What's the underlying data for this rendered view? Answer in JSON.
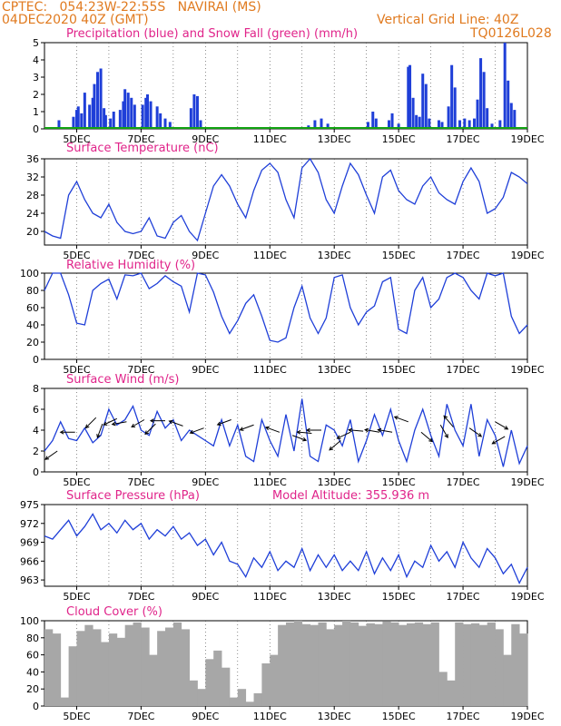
{
  "header": {
    "station_line": "CPTEC:   054:23W-22:55S   NAVIRAI (MS)",
    "date_line": "04DEC2020 40Z (GMT)",
    "grid_line": "Vertical Grid Line: 40Z",
    "code": "TQ0126L028"
  },
  "colors": {
    "header": "#e07a1f",
    "title": "#e0248a",
    "line": "#1f3fd8",
    "precip": "#1f3fd8",
    "snow": "#12a312",
    "cloud": "#a7a7a7",
    "arrow": "#000000"
  },
  "x_axis": {
    "tick_labels": [
      "5DEC",
      "7DEC",
      "9DEC",
      "11DEC",
      "13DEC",
      "15DEC",
      "17DEC",
      "19DEC"
    ]
  },
  "chart_data": [
    {
      "type": "bar",
      "title": "Precipitation (blue) and Snow Fall (green) (mm/h)",
      "ylim": [
        0,
        5
      ],
      "yticks": [
        0,
        1,
        2,
        3,
        4,
        5
      ],
      "series": [
        {
          "name": "Precipitation",
          "color": "#1f3fd8",
          "points": [
            [
              0.45,
              0.5
            ],
            [
              0.9,
              0.7
            ],
            [
              1.0,
              1.1
            ],
            [
              1.05,
              1.3
            ],
            [
              1.15,
              0.9
            ],
            [
              1.25,
              2.1
            ],
            [
              1.4,
              1.4
            ],
            [
              1.5,
              1.8
            ],
            [
              1.55,
              2.6
            ],
            [
              1.65,
              3.3
            ],
            [
              1.75,
              3.5
            ],
            [
              1.85,
              1.2
            ],
            [
              1.9,
              0.8
            ],
            [
              2.05,
              0.6
            ],
            [
              2.15,
              1.0
            ],
            [
              2.35,
              1.1
            ],
            [
              2.45,
              1.6
            ],
            [
              2.5,
              2.3
            ],
            [
              2.6,
              2.1
            ],
            [
              2.7,
              1.8
            ],
            [
              2.8,
              1.4
            ],
            [
              3.05,
              1.4
            ],
            [
              3.15,
              1.8
            ],
            [
              3.2,
              2.0
            ],
            [
              3.3,
              1.6
            ],
            [
              3.5,
              1.3
            ],
            [
              3.6,
              0.9
            ],
            [
              3.75,
              0.6
            ],
            [
              3.9,
              0.4
            ],
            [
              4.55,
              1.2
            ],
            [
              4.65,
              2.0
            ],
            [
              4.75,
              1.9
            ],
            [
              4.85,
              0.5
            ],
            [
              8.2,
              0.2
            ],
            [
              8.4,
              0.5
            ],
            [
              8.6,
              0.6
            ],
            [
              8.8,
              0.3
            ],
            [
              10.05,
              0.4
            ],
            [
              10.2,
              1.0
            ],
            [
              10.3,
              0.6
            ],
            [
              10.7,
              0.5
            ],
            [
              10.8,
              0.9
            ],
            [
              11.0,
              0.3
            ],
            [
              11.3,
              3.6
            ],
            [
              11.35,
              3.7
            ],
            [
              11.45,
              1.8
            ],
            [
              11.55,
              0.8
            ],
            [
              11.65,
              0.7
            ],
            [
              11.75,
              3.2
            ],
            [
              11.85,
              2.6
            ],
            [
              11.95,
              0.6
            ],
            [
              12.25,
              0.5
            ],
            [
              12.35,
              0.4
            ],
            [
              12.55,
              1.3
            ],
            [
              12.65,
              3.7
            ],
            [
              12.75,
              2.4
            ],
            [
              12.9,
              0.5
            ],
            [
              13.05,
              0.6
            ],
            [
              13.2,
              0.5
            ],
            [
              13.35,
              0.6
            ],
            [
              13.45,
              1.7
            ],
            [
              13.55,
              4.1
            ],
            [
              13.65,
              3.3
            ],
            [
              13.75,
              1.2
            ],
            [
              13.9,
              0.3
            ],
            [
              14.15,
              0.5
            ],
            [
              14.3,
              5.0
            ],
            [
              14.4,
              2.8
            ],
            [
              14.5,
              1.5
            ],
            [
              14.6,
              1.1
            ]
          ]
        },
        {
          "name": "Snow Fall",
          "color": "#12a312",
          "points": [
            [
              0,
              0
            ],
            [
              15.0,
              0
            ]
          ]
        }
      ]
    },
    {
      "type": "line",
      "title": "Surface Temperature (nC)",
      "ylim": [
        17,
        36
      ],
      "yticks": [
        20,
        24,
        28,
        32,
        36
      ],
      "x": [
        0,
        0.25,
        0.5,
        0.75,
        1.0,
        1.25,
        1.5,
        1.75,
        2.0,
        2.25,
        2.5,
        2.75,
        3.0,
        3.25,
        3.5,
        3.75,
        4.0,
        4.25,
        4.5,
        4.75,
        5.0,
        5.25,
        5.5,
        5.75,
        6.0,
        6.25,
        6.5,
        6.75,
        7.0,
        7.25,
        7.5,
        7.75,
        8.0,
        8.25,
        8.5,
        8.75,
        9.0,
        9.25,
        9.5,
        9.75,
        10.0,
        10.25,
        10.5,
        10.75,
        11.0,
        11.25,
        11.5,
        11.75,
        12.0,
        12.25,
        12.5,
        12.75,
        13.0,
        13.25,
        13.5,
        13.75,
        14.0,
        14.25,
        14.5,
        14.75,
        15.0
      ],
      "series": [
        {
          "color": "#1f3fd8",
          "values": [
            20,
            19,
            18.5,
            28,
            31,
            27,
            24,
            23,
            26,
            22,
            20,
            19.5,
            20,
            23,
            19,
            18.5,
            22,
            23.5,
            20,
            18,
            24,
            30,
            32.5,
            30,
            26,
            23,
            29,
            33.5,
            35,
            33,
            27,
            23,
            34,
            36,
            33,
            27,
            24,
            30,
            35,
            32.5,
            28,
            24,
            32,
            33.5,
            29,
            27,
            26,
            30,
            32,
            28.5,
            27,
            26,
            31,
            34,
            31,
            24,
            25,
            27.5,
            33,
            32,
            30.5
          ]
        }
      ]
    },
    {
      "type": "line",
      "title": "Relative Humidity (%)",
      "ylim": [
        0,
        100
      ],
      "yticks": [
        0,
        20,
        40,
        60,
        80,
        100
      ],
      "x": [
        0,
        0.25,
        0.5,
        0.75,
        1.0,
        1.25,
        1.5,
        1.75,
        2.0,
        2.25,
        2.5,
        2.75,
        3.0,
        3.25,
        3.5,
        3.75,
        4.0,
        4.25,
        4.5,
        4.75,
        5.0,
        5.25,
        5.5,
        5.75,
        6.0,
        6.25,
        6.5,
        6.75,
        7.0,
        7.25,
        7.5,
        7.75,
        8.0,
        8.25,
        8.5,
        8.75,
        9.0,
        9.25,
        9.5,
        9.75,
        10.0,
        10.25,
        10.5,
        10.75,
        11.0,
        11.25,
        11.5,
        11.75,
        12.0,
        12.25,
        12.5,
        12.75,
        13.0,
        13.25,
        13.5,
        13.75,
        14.0,
        14.25,
        14.5,
        14.75,
        15.0
      ],
      "series": [
        {
          "color": "#1f3fd8",
          "values": [
            80,
            100,
            100,
            75,
            42,
            40,
            80,
            88,
            93,
            70,
            98,
            97,
            100,
            82,
            88,
            97,
            90,
            85,
            55,
            100,
            98,
            78,
            50,
            30,
            45,
            65,
            75,
            50,
            22,
            20,
            25,
            60,
            85,
            48,
            30,
            48,
            95,
            98,
            60,
            40,
            55,
            62,
            90,
            95,
            35,
            30,
            80,
            95,
            60,
            70,
            95,
            100,
            95,
            80,
            70,
            100,
            97,
            100,
            50,
            30,
            40
          ]
        }
      ]
    },
    {
      "type": "line",
      "title": "Surface Wind (m/s)",
      "ylim": [
        0,
        8
      ],
      "yticks": [
        0,
        2,
        4,
        6,
        8
      ],
      "x": [
        0,
        0.25,
        0.5,
        0.75,
        1.0,
        1.25,
        1.5,
        1.75,
        2.0,
        2.25,
        2.5,
        2.75,
        3.0,
        3.25,
        3.5,
        3.75,
        4.0,
        4.25,
        4.5,
        4.75,
        5.0,
        5.25,
        5.5,
        5.75,
        6.0,
        6.25,
        6.5,
        6.75,
        7.0,
        7.25,
        7.5,
        7.75,
        8.0,
        8.25,
        8.5,
        8.75,
        9.0,
        9.25,
        9.5,
        9.75,
        10.0,
        10.25,
        10.5,
        10.75,
        11.0,
        11.25,
        11.5,
        11.75,
        12.0,
        12.25,
        12.5,
        12.75,
        13.0,
        13.25,
        13.5,
        13.75,
        14.0,
        14.25,
        14.5,
        14.75,
        15.0
      ],
      "series": [
        {
          "color": "#1f3fd8",
          "values": [
            2,
            3,
            4.8,
            3.2,
            3,
            4.2,
            2.8,
            3.5,
            6,
            4.5,
            5,
            6.3,
            4,
            3.5,
            5.8,
            4.2,
            5,
            3,
            4,
            3.5,
            3,
            2.5,
            5,
            2.5,
            4.5,
            1.5,
            1,
            5,
            3,
            1.5,
            5.5,
            2,
            7,
            1.5,
            1,
            4.5,
            4,
            2.5,
            5,
            1,
            3,
            5.5,
            3.5,
            6,
            3,
            1,
            4,
            6,
            3.5,
            1.5,
            6.5,
            4,
            2.5,
            6.5,
            1.5,
            5,
            3.5,
            0.5,
            4,
            0.8,
            2.5
          ]
        }
      ],
      "wind_arrows": [
        [
          0.4,
          2.0,
          215
        ],
        [
          0.95,
          3.8,
          180
        ],
        [
          1.6,
          5.2,
          225
        ],
        [
          1.8,
          4.6,
          250
        ],
        [
          2.25,
          5.1,
          205
        ],
        [
          2.55,
          4.8,
          190
        ],
        [
          3.1,
          5.0,
          210
        ],
        [
          3.45,
          4.6,
          225
        ],
        [
          3.75,
          4.9,
          180
        ],
        [
          4.3,
          4.4,
          160
        ],
        [
          4.95,
          4.2,
          200
        ],
        [
          5.8,
          5.0,
          200
        ],
        [
          6.5,
          4.5,
          200
        ],
        [
          7.3,
          3.8,
          160
        ],
        [
          7.7,
          3.5,
          340
        ],
        [
          8.3,
          3.7,
          175
        ],
        [
          8.6,
          4.0,
          180
        ],
        [
          9.2,
          3.0,
          220
        ],
        [
          9.5,
          3.8,
          205
        ],
        [
          9.9,
          3.9,
          175
        ],
        [
          10.4,
          3.8,
          170
        ],
        [
          10.8,
          3.8,
          170
        ],
        [
          11.3,
          4.8,
          160
        ],
        [
          11.7,
          3.8,
          320
        ],
        [
          12.3,
          4.5,
          300
        ],
        [
          12.7,
          4.3,
          130
        ],
        [
          13.2,
          4.2,
          325
        ],
        [
          14.0,
          4.8,
          330
        ],
        [
          14.3,
          3.4,
          210
        ]
      ]
    },
    {
      "type": "line",
      "title": "Surface Pressure (hPa)",
      "annotation": "Model Altitude: 355.936  m",
      "ylim": [
        962,
        975
      ],
      "yticks": [
        963,
        966,
        969,
        972,
        975
      ],
      "x": [
        0,
        0.25,
        0.5,
        0.75,
        1.0,
        1.25,
        1.5,
        1.75,
        2.0,
        2.25,
        2.5,
        2.75,
        3.0,
        3.25,
        3.5,
        3.75,
        4.0,
        4.25,
        4.5,
        4.75,
        5.0,
        5.25,
        5.5,
        5.75,
        6.0,
        6.25,
        6.5,
        6.75,
        7.0,
        7.25,
        7.5,
        7.75,
        8.0,
        8.25,
        8.5,
        8.75,
        9.0,
        9.25,
        9.5,
        9.75,
        10.0,
        10.25,
        10.5,
        10.75,
        11.0,
        11.25,
        11.5,
        11.75,
        12.0,
        12.25,
        12.5,
        12.75,
        13.0,
        13.25,
        13.5,
        13.75,
        14.0,
        14.25,
        14.5,
        14.75,
        15.0
      ],
      "series": [
        {
          "color": "#1f3fd8",
          "values": [
            970,
            969.5,
            971,
            972.5,
            970,
            971.5,
            973.5,
            971,
            972,
            970.5,
            972.5,
            971,
            972,
            969.5,
            971,
            970,
            971.5,
            969.5,
            970.5,
            968.5,
            969.5,
            967,
            969,
            966,
            965.5,
            963.5,
            966.5,
            965,
            967.5,
            964.5,
            966,
            965,
            968,
            964.5,
            967,
            965,
            967,
            964.5,
            966,
            964.5,
            967.5,
            964,
            966.5,
            964.5,
            967,
            963.5,
            966,
            965,
            968.5,
            966,
            967.5,
            965,
            969,
            966.5,
            965,
            968,
            966.5,
            964,
            965.5,
            962.5,
            965
          ]
        }
      ]
    },
    {
      "type": "bar",
      "title": "Cloud Cover (%)",
      "ylim": [
        0,
        100
      ],
      "yticks": [
        0,
        20,
        40,
        60,
        80,
        100
      ],
      "series": [
        {
          "color": "#a7a7a7",
          "x": [
            0,
            0.25,
            0.5,
            0.75,
            1.0,
            1.25,
            1.5,
            1.75,
            2.0,
            2.25,
            2.5,
            2.75,
            3.0,
            3.25,
            3.5,
            3.75,
            4.0,
            4.25,
            4.5,
            4.75,
            5.0,
            5.25,
            5.5,
            5.75,
            6.0,
            6.25,
            6.5,
            6.75,
            7.0,
            7.25,
            7.5,
            7.75,
            8.0,
            8.25,
            8.5,
            8.75,
            9.0,
            9.25,
            9.5,
            9.75,
            10.0,
            10.25,
            10.5,
            10.75,
            11.0,
            11.25,
            11.5,
            11.75,
            12.0,
            12.25,
            12.5,
            12.75,
            13.0,
            13.25,
            13.5,
            13.75,
            14.0,
            14.25,
            14.5,
            14.75
          ],
          "values": [
            90,
            85,
            10,
            70,
            88,
            95,
            90,
            75,
            85,
            80,
            95,
            98,
            92,
            60,
            88,
            92,
            98,
            90,
            30,
            20,
            55,
            65,
            45,
            10,
            20,
            5,
            15,
            50,
            60,
            95,
            98,
            100,
            96,
            95,
            98,
            90,
            95,
            100,
            98,
            94,
            97,
            96,
            99,
            98,
            95,
            97,
            98,
            96,
            98,
            40,
            30,
            98,
            96,
            97,
            95,
            98,
            90,
            60,
            96,
            85
          ]
        }
      ]
    }
  ]
}
